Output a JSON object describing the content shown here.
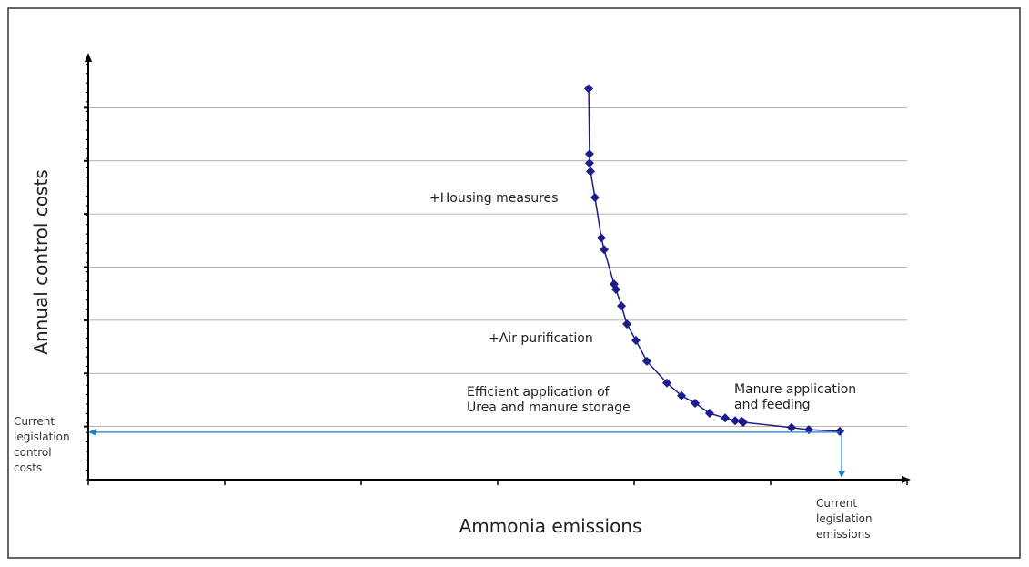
{
  "chart_data": {
    "type": "line",
    "x_label": "Ammonia emissions",
    "y_label": "Annual control costs",
    "x": [
      3.667,
      3.673,
      3.673,
      3.68,
      3.713,
      3.76,
      3.78,
      3.853,
      3.867,
      3.907,
      3.947,
      4.013,
      4.093,
      4.24,
      4.347,
      4.447,
      4.553,
      4.667,
      4.74,
      4.787,
      4.8,
      5.153,
      5.28,
      5.507
    ],
    "series": [
      {
        "color": "#1c1c8a",
        "values": [
          7.36,
          6.13,
          5.96,
          5.8,
          5.31,
          4.55,
          4.33,
          3.68,
          3.58,
          3.27,
          2.93,
          2.62,
          2.23,
          1.82,
          1.58,
          1.44,
          1.25,
          1.16,
          1.11,
          1.1,
          1.08,
          0.98,
          0.94,
          0.91
        ]
      }
    ],
    "xlim": [
      0,
      6
    ],
    "ylim": [
      0,
      8
    ],
    "xticks": [
      0,
      1,
      2,
      3,
      4,
      5,
      6
    ],
    "yticks": [
      1,
      2,
      3,
      4,
      5,
      6,
      7
    ],
    "grid": true,
    "annotations": [
      {
        "lines": [
          "+Housing measures"
        ]
      },
      {
        "lines": [
          "+Air purification"
        ]
      },
      {
        "lines": [
          "Efficient application of",
          "Urea and manure storage"
        ]
      },
      {
        "lines": [
          "Manure application",
          "and feeding"
        ]
      },
      {
        "lines": [
          "Current",
          "legislation",
          "control",
          "costs"
        ]
      },
      {
        "lines": [
          "Current",
          "legislation",
          "emissions"
        ]
      }
    ],
    "reference_color": "#1f7fc4"
  }
}
